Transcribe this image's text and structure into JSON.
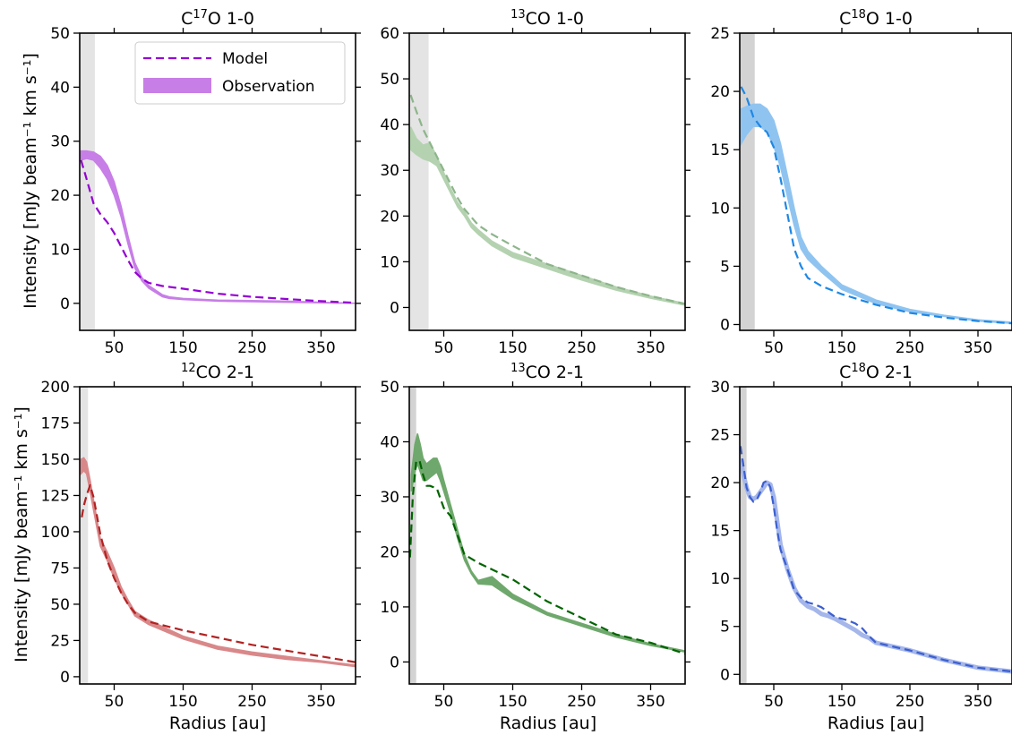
{
  "figure": {
    "ylabel": "Intensity [mJy beam⁻¹ km s⁻¹]",
    "xlabel": "Radius [au]"
  },
  "legend": {
    "model_label": "Model",
    "observation_label": "Observation"
  },
  "chart_data": [
    {
      "type": "line",
      "title": "C¹⁷O 1-0",
      "title_parts": {
        "pre": "C",
        "sup": "17",
        "post": "O 1-0"
      },
      "color": "#9400d3",
      "obs_fill": "#c77ee6",
      "shade": "#e4e4e4",
      "shade_range": [
        0,
        22
      ],
      "xlim": [
        0,
        400
      ],
      "ylim": [
        -5,
        50
      ],
      "xticks": [
        50,
        150,
        250,
        350
      ],
      "yticks": [
        0,
        10,
        20,
        30,
        40,
        50
      ],
      "model": {
        "x": [
          2,
          10,
          20,
          30,
          40,
          50,
          60,
          70,
          80,
          90,
          100,
          120,
          150,
          200,
          250,
          300,
          350,
          400
        ],
        "y": [
          26.5,
          23,
          18.5,
          16.5,
          15,
          13,
          10.5,
          8,
          5.8,
          4.6,
          3.8,
          3.2,
          2.7,
          1.8,
          1.2,
          0.8,
          0.4,
          0.1
        ]
      },
      "observation": {
        "x": [
          2,
          10,
          20,
          30,
          40,
          50,
          60,
          70,
          80,
          90,
          100,
          120,
          130,
          150,
          200,
          250,
          300,
          350,
          400
        ],
        "low": [
          26.5,
          26.8,
          26.5,
          25,
          23,
          20,
          16,
          11,
          6.5,
          4.2,
          2.8,
          1.2,
          0.9,
          0.7,
          0.4,
          0.3,
          0.2,
          0.1,
          0.0
        ],
        "high": [
          28.2,
          28.2,
          28,
          27.2,
          25.5,
          22.5,
          18,
          12.5,
          7.5,
          4.8,
          3.3,
          1.6,
          1.2,
          0.9,
          0.6,
          0.5,
          0.4,
          0.2,
          0.0
        ]
      }
    },
    {
      "type": "line",
      "title": "¹³CO 1-0",
      "title_parts": {
        "pre": "",
        "sup": "13",
        "post": "CO 1-0"
      },
      "color": "#8db58b",
      "obs_fill": "#b4d2b0",
      "shade": "#e4e4e4",
      "shade_range": [
        0,
        28
      ],
      "xlim": [
        0,
        400
      ],
      "ylim": [
        -5,
        60
      ],
      "xticks": [
        50,
        150,
        250,
        350
      ],
      "yticks": [
        0,
        10,
        20,
        30,
        40,
        50,
        60
      ],
      "model": {
        "x": [
          2,
          10,
          20,
          30,
          40,
          50,
          60,
          70,
          80,
          100,
          120,
          150,
          200,
          250,
          300,
          350,
          400
        ],
        "y": [
          46.5,
          43,
          39,
          36,
          33,
          30,
          27,
          24,
          21.5,
          18,
          16,
          13.5,
          9.5,
          7,
          4.5,
          2.5,
          0.8
        ]
      },
      "observation": {
        "x": [
          2,
          10,
          20,
          30,
          40,
          50,
          60,
          70,
          80,
          90,
          100,
          120,
          150,
          200,
          250,
          300,
          350,
          400
        ],
        "low": [
          34.5,
          33.5,
          32.5,
          32,
          31,
          28,
          25,
          22,
          20,
          17.5,
          16,
          13.5,
          11,
          8.5,
          6,
          3.8,
          2,
          0.5
        ],
        "high": [
          39.5,
          37,
          35.5,
          36,
          33,
          29.5,
          26,
          23,
          21,
          18.5,
          17,
          14.5,
          12,
          9.5,
          7,
          4.5,
          2.5,
          0.9
        ]
      }
    },
    {
      "type": "line",
      "title": "C¹⁸O 1-0",
      "title_parts": {
        "pre": "C",
        "sup": "18",
        "post": "O 1-0"
      },
      "color": "#1e88e5",
      "obs_fill": "#90c4f0",
      "shade": "#d3d3d3",
      "shade_range": [
        0,
        22
      ],
      "xlim": [
        0,
        400
      ],
      "ylim": [
        -0.5,
        25
      ],
      "xticks": [
        50,
        150,
        250,
        350
      ],
      "yticks": [
        0,
        5,
        10,
        15,
        20,
        25
      ],
      "model": {
        "x": [
          2,
          10,
          20,
          30,
          40,
          50,
          60,
          70,
          80,
          90,
          100,
          120,
          150,
          200,
          250,
          300,
          350,
          400
        ],
        "y": [
          20.4,
          19.5,
          17.8,
          17,
          16.5,
          15.2,
          12.5,
          9.5,
          6.5,
          5,
          4,
          3.3,
          2.6,
          1.7,
          1,
          0.6,
          0.3,
          0.1
        ]
      },
      "observation": {
        "x": [
          2,
          10,
          20,
          30,
          40,
          50,
          60,
          70,
          80,
          90,
          100,
          120,
          150,
          200,
          250,
          300,
          350,
          400
        ],
        "low": [
          15.5,
          16.3,
          17,
          17,
          16.5,
          15.3,
          13.5,
          11,
          8.5,
          6.5,
          5.6,
          4.5,
          3,
          1.8,
          1.1,
          0.7,
          0.3,
          0.1
        ],
        "high": [
          18.5,
          18.7,
          18.9,
          18.9,
          18.5,
          17.5,
          15.5,
          12.8,
          10,
          7.5,
          6.3,
          5,
          3.4,
          2.1,
          1.3,
          0.8,
          0.4,
          0.2
        ]
      }
    },
    {
      "type": "line",
      "title": "¹²CO 2-1",
      "title_parts": {
        "pre": "",
        "sup": "12",
        "post": "CO 2-1"
      },
      "color": "#b22222",
      "obs_fill": "#d9888a",
      "shade": "#e4e4e4",
      "shade_range": [
        0,
        12
      ],
      "xlim": [
        0,
        400
      ],
      "ylim": [
        -5,
        200
      ],
      "xticks": [
        50,
        150,
        250,
        350
      ],
      "yticks": [
        0,
        25,
        50,
        75,
        100,
        125,
        150,
        175,
        200
      ],
      "model": {
        "x": [
          3,
          6,
          10,
          15,
          20,
          30,
          40,
          50,
          60,
          70,
          80,
          100,
          150,
          200,
          250,
          300,
          350,
          400
        ],
        "y": [
          110,
          118,
          125,
          132,
          124,
          98,
          80,
          68,
          58,
          50,
          44,
          38,
          32,
          27,
          22,
          18,
          14,
          10
        ]
      },
      "observation": {
        "x": [
          2,
          6,
          10,
          15,
          20,
          30,
          40,
          50,
          60,
          70,
          80,
          100,
          150,
          200,
          250,
          300,
          350,
          400
        ],
        "low": [
          140,
          142,
          140,
          128,
          115,
          90,
          80,
          68,
          58,
          50,
          42,
          36,
          26,
          19,
          15,
          12,
          10,
          7
        ],
        "high": [
          150,
          151,
          148,
          136,
          122,
          95,
          86,
          75,
          62,
          53,
          45,
          39,
          28,
          21,
          17,
          14,
          11,
          8
        ]
      }
    },
    {
      "type": "line",
      "title": "¹³CO 2-1",
      "title_parts": {
        "pre": "",
        "sup": "13",
        "post": "CO 2-1"
      },
      "color": "#006400",
      "obs_fill": "#6fa86c",
      "shade": "#d3d3d3",
      "shade_range": [
        0,
        10
      ],
      "xlim": [
        0,
        400
      ],
      "ylim": [
        -4,
        50
      ],
      "xticks": [
        50,
        150,
        250,
        350
      ],
      "yticks": [
        0,
        10,
        20,
        30,
        40,
        50
      ],
      "model": {
        "x": [
          1,
          5,
          10,
          15,
          20,
          25,
          30,
          40,
          50,
          60,
          70,
          80,
          100,
          150,
          200,
          250,
          300,
          350,
          400
        ],
        "y": [
          19,
          30,
          36.5,
          36.5,
          34,
          32,
          32,
          31.5,
          28,
          26.5,
          23,
          19.5,
          18,
          15,
          11,
          8,
          5,
          3.5,
          1.5
        ]
      },
      "observation": {
        "x": [
          3,
          8,
          12,
          16,
          20,
          25,
          30,
          35,
          40,
          45,
          50,
          60,
          70,
          80,
          90,
          100,
          120,
          150,
          200,
          250,
          300,
          350,
          400
        ],
        "low": [
          31,
          34.5,
          36,
          34.5,
          33,
          33,
          33.5,
          34,
          34.5,
          33,
          31,
          27,
          22.5,
          18.5,
          16,
          14.2,
          14,
          11.5,
          8.5,
          6.5,
          4.5,
          3,
          1.8
        ],
        "high": [
          34,
          39.5,
          41.5,
          39.5,
          37,
          36,
          36.5,
          37,
          37,
          35.5,
          33,
          28.5,
          24,
          19.5,
          16.5,
          14.8,
          15.5,
          12.3,
          9,
          7,
          5,
          3.3,
          2
        ]
      }
    },
    {
      "type": "line",
      "title": "C¹⁸O 2-1",
      "title_parts": {
        "pre": "C",
        "sup": "18",
        "post": "O 2-1"
      },
      "color": "#3c5fcf",
      "obs_fill": "#a4b6ea",
      "shade": "#d3d3d3",
      "shade_range": [
        0,
        10
      ],
      "xlim": [
        0,
        400
      ],
      "ylim": [
        -1,
        30
      ],
      "xticks": [
        50,
        150,
        250,
        350
      ],
      "yticks": [
        0,
        5,
        10,
        15,
        20,
        25,
        30
      ],
      "model": {
        "x": [
          1,
          5,
          10,
          15,
          20,
          25,
          30,
          35,
          40,
          45,
          50,
          55,
          60,
          70,
          80,
          90,
          100,
          110,
          120,
          130,
          140,
          150,
          160,
          170,
          180,
          190,
          200,
          250,
          300,
          350,
          400
        ],
        "y": [
          23.8,
          22,
          19.5,
          18.5,
          18,
          18.2,
          19,
          20,
          20.2,
          19.5,
          17.5,
          15,
          13,
          11,
          8.8,
          8,
          7.5,
          7.3,
          7,
          6.5,
          6,
          5.8,
          5.6,
          5.3,
          4.8,
          4,
          3.3,
          2.5,
          1.5,
          0.7,
          0.3
        ]
      },
      "observation": {
        "x": [
          1,
          5,
          10,
          15,
          20,
          25,
          30,
          35,
          40,
          45,
          50,
          55,
          60,
          70,
          80,
          90,
          100,
          110,
          120,
          130,
          140,
          150,
          160,
          170,
          180,
          190,
          200,
          250,
          300,
          350,
          400
        ],
        "low": [
          22.5,
          21,
          19.5,
          18.5,
          18.3,
          18.5,
          19,
          19.5,
          20,
          19.8,
          18.5,
          16,
          13.5,
          11,
          9,
          7.7,
          7.1,
          6.8,
          6.3,
          6.1,
          5.8,
          5.4,
          5,
          4.6,
          4.1,
          3.8,
          3.3,
          2.5,
          1.5,
          0.7,
          0.3
        ]
      }
    }
  ]
}
